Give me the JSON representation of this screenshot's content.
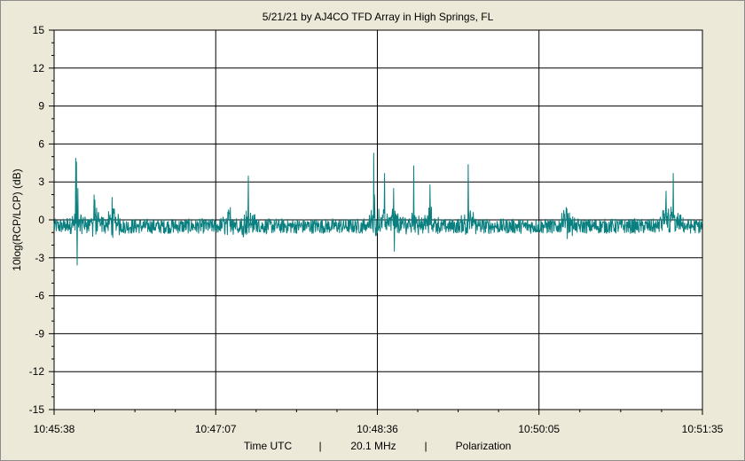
{
  "chart_data": {
    "type": "line",
    "title": "5/21/21  by  AJ4CO TFD Array  in  High Springs, FL",
    "ylabel": "10log(RCP/LCP) (dB)",
    "xlabel_parts": [
      "Time UTC",
      "|",
      "20.1 MHz",
      "|",
      "Polarization"
    ],
    "ylim": [
      -15,
      15
    ],
    "yticks": [
      "15",
      "12",
      "9",
      "6",
      "3",
      "0",
      "-3",
      "-6",
      "-9",
      "-12",
      "-15"
    ],
    "xticks": [
      "10:45:38",
      "10:47:07",
      "10:48:36",
      "10:50:05",
      "10:51:35"
    ],
    "grid": true,
    "colors": {
      "series": "#0a7f7f",
      "plot_bg": "#ffffff",
      "grid": "#000000",
      "window_bg": "#ece9d8"
    },
    "series": [
      {
        "x_range": [
          "10:45:38",
          "10:51:35"
        ],
        "baseline": -0.5,
        "noise_amplitude": 0.6,
        "bursts": [
          {
            "t": "10:45:50",
            "values": [
              4.9,
              4.6,
              -3.6,
              2.5
            ]
          },
          {
            "t": "10:46:00",
            "values": [
              2.0,
              1.6
            ]
          },
          {
            "t": "10:46:10",
            "values": [
              1.8
            ]
          },
          {
            "t": "10:47:15",
            "values": [
              1.0
            ]
          },
          {
            "t": "10:47:25",
            "values": [
              3.5
            ]
          },
          {
            "t": "10:48:34",
            "values": [
              5.3,
              2.0
            ]
          },
          {
            "t": "10:48:40",
            "values": [
              3.7
            ]
          },
          {
            "t": "10:48:45",
            "values": [
              2.5,
              -2.5
            ]
          },
          {
            "t": "10:48:56",
            "values": [
              4.3
            ]
          },
          {
            "t": "10:49:05",
            "values": [
              2.8
            ]
          },
          {
            "t": "10:49:26",
            "values": [
              4.4
            ]
          },
          {
            "t": "10:50:20",
            "values": [
              1.0
            ]
          },
          {
            "t": "10:51:19",
            "values": [
              3.7
            ]
          },
          {
            "t": "10:51:15",
            "values": [
              2.3
            ]
          }
        ]
      }
    ]
  }
}
